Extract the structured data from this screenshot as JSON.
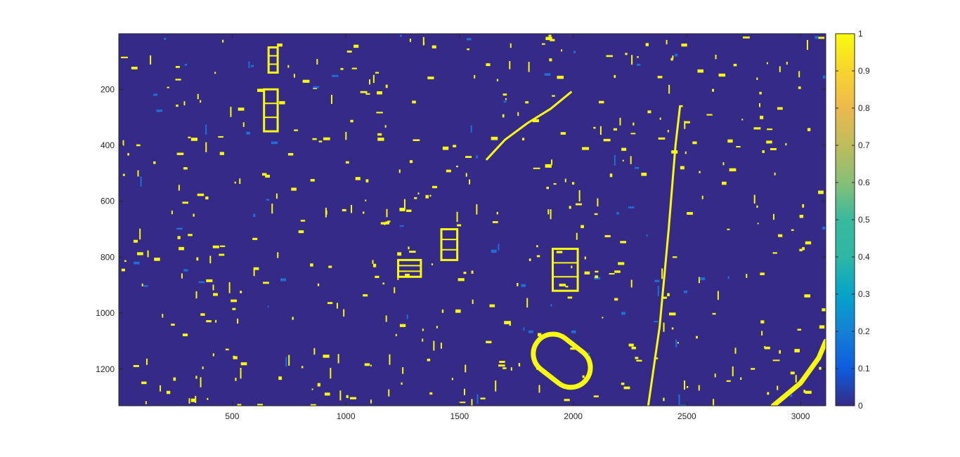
{
  "chart_data": {
    "type": "heatmap",
    "title": "",
    "xlabel": "",
    "ylabel": "",
    "xlim": [
      1,
      3111
    ],
    "ylim": [
      1,
      1331
    ],
    "y_reversed": true,
    "x_ticks": [
      500,
      1000,
      1500,
      2000,
      2500,
      3000
    ],
    "y_ticks": [
      200,
      400,
      600,
      800,
      1000,
      1200
    ],
    "colorbar": {
      "location": "right",
      "range": [
        0,
        1
      ],
      "ticks": [
        0,
        0.1,
        0.2,
        0.3,
        0.4,
        0.5,
        0.6,
        0.7,
        0.8,
        0.9,
        1
      ],
      "tick_labels": [
        "0",
        "0.1",
        "0.2",
        "0.3",
        "0.4",
        "0.5",
        "0.6",
        "0.7",
        "0.8",
        "0.9",
        "1"
      ],
      "colormap": "parula"
    },
    "colors": {
      "low": "#352A87",
      "high": "#F9FB0E"
    },
    "description_values": "Binary classification map: background value 0, detected features value 1",
    "features": [
      {
        "name": "running-track",
        "shape": "oval-ring",
        "cx": 1950,
        "cy": 1170,
        "value": 1
      },
      {
        "name": "curved-road",
        "shape": "polyline",
        "points": [
          [
            1620,
            450
          ],
          [
            1700,
            380
          ],
          [
            1800,
            320
          ],
          [
            1900,
            270
          ],
          [
            1990,
            210
          ]
        ],
        "value": 1
      },
      {
        "name": "long-strip-east",
        "shape": "polyline",
        "points": [
          [
            2330,
            1331
          ],
          [
            2380,
            1050
          ],
          [
            2420,
            700
          ],
          [
            2450,
            400
          ],
          [
            2470,
            260
          ]
        ],
        "value": 1
      },
      {
        "name": "diagonal-edge-southeast",
        "shape": "polyline",
        "points": [
          [
            2880,
            1331
          ],
          [
            3000,
            1250
          ],
          [
            3080,
            1160
          ],
          [
            3111,
            1100
          ]
        ],
        "value": 1
      },
      {
        "name": "building-north",
        "shape": "rect",
        "x": 640,
        "y": 200,
        "w": 60,
        "h": 150,
        "value": 1
      },
      {
        "name": "building-northwest",
        "shape": "rect",
        "x": 660,
        "y": 50,
        "w": 40,
        "h": 90,
        "value": 1
      },
      {
        "name": "building-center",
        "shape": "rect",
        "x": 1420,
        "y": 700,
        "w": 70,
        "h": 110,
        "value": 1
      },
      {
        "name": "building-ladder",
        "shape": "rect",
        "x": 1910,
        "y": 770,
        "w": 110,
        "h": 150,
        "value": 1
      },
      {
        "name": "building-cluster-south",
        "shape": "rect",
        "x": 1230,
        "y": 810,
        "w": 100,
        "h": 60,
        "value": 1
      }
    ]
  }
}
